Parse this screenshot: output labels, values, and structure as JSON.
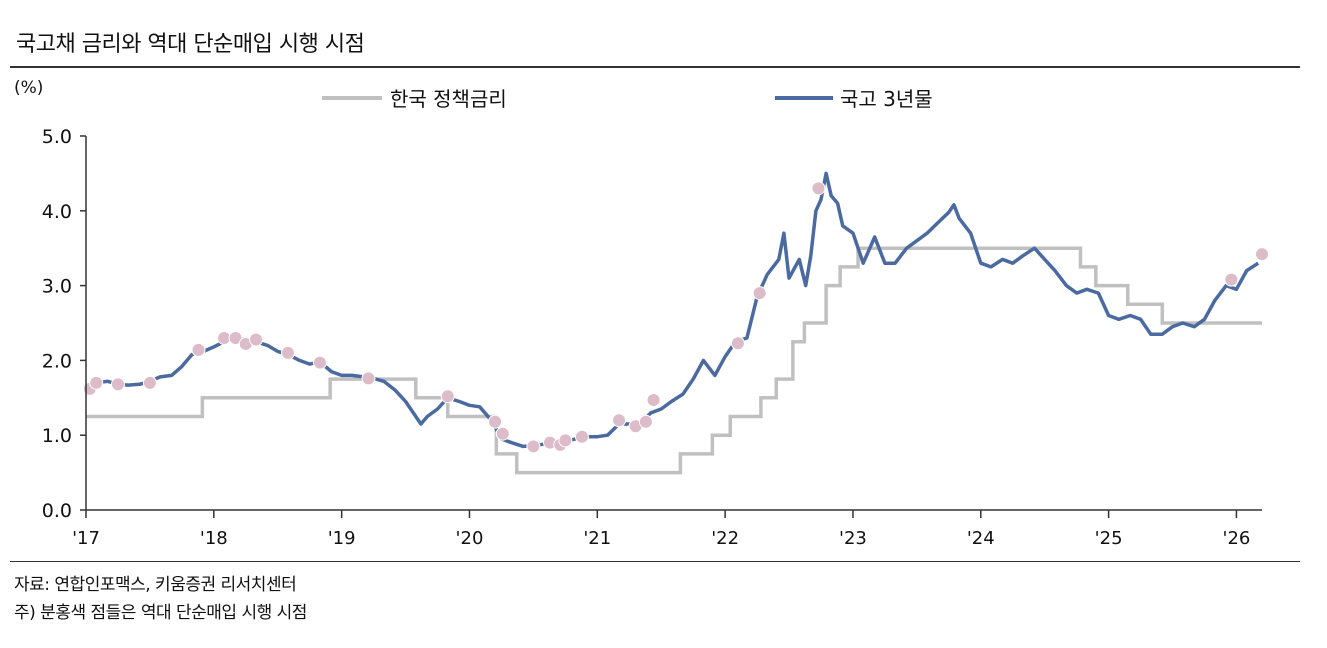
{
  "title": "국고채 금리와 역대 단순매입 시행 시점",
  "notes": {
    "source": "자료: 연합인포맥스, 키움증권 리서치센터",
    "caveat": "주) 분홍색 점들은 역대 단순매입 시행 시점"
  },
  "chart_data": {
    "type": "line",
    "unit_label": "(%)",
    "y_ticks": [
      "0.0",
      "1.0",
      "2.0",
      "3.0",
      "4.0",
      "5.0"
    ],
    "x_ticks": [
      "'17",
      "'18",
      "'19",
      "'20",
      "'21",
      "'22",
      "'23",
      "'24",
      "'25",
      "'26"
    ],
    "ylim": [
      0,
      5
    ],
    "xlim": [
      2017.0,
      2026.2
    ],
    "legend_position": "top",
    "colors": {
      "policy": "#c0c0c0",
      "bond": "#4a6aa0",
      "marker": "#dbbcc8",
      "axis": "#333333"
    },
    "series": [
      {
        "name": "한국 정책금리",
        "step": true,
        "x": [
          2017.0,
          2017.91,
          2018.91,
          2019.58,
          2019.83,
          2020.21,
          2020.37,
          2021.65,
          2021.9,
          2022.04,
          2022.28,
          2022.4,
          2022.53,
          2022.62,
          2022.79,
          2022.9,
          2023.04,
          2024.78,
          2024.9,
          2025.15,
          2025.42,
          2026.2
        ],
        "y": [
          1.25,
          1.5,
          1.75,
          1.5,
          1.25,
          0.75,
          0.5,
          0.75,
          1.0,
          1.25,
          1.5,
          1.75,
          2.25,
          2.5,
          3.0,
          3.25,
          3.5,
          3.25,
          3.0,
          2.75,
          2.5,
          2.5
        ]
      },
      {
        "name": "국고 3년물",
        "x": [
          2017.0,
          2017.08,
          2017.17,
          2017.25,
          2017.33,
          2017.42,
          2017.5,
          2017.58,
          2017.67,
          2017.75,
          2017.83,
          2017.92,
          2018.0,
          2018.08,
          2018.17,
          2018.25,
          2018.33,
          2018.42,
          2018.5,
          2018.58,
          2018.67,
          2018.75,
          2018.83,
          2018.92,
          2019.0,
          2019.08,
          2019.17,
          2019.25,
          2019.33,
          2019.42,
          2019.5,
          2019.58,
          2019.62,
          2019.67,
          2019.75,
          2019.83,
          2019.92,
          2020.0,
          2020.08,
          2020.17,
          2020.21,
          2020.25,
          2020.33,
          2020.42,
          2020.5,
          2020.58,
          2020.67,
          2020.75,
          2020.83,
          2020.92,
          2021.0,
          2021.08,
          2021.17,
          2021.25,
          2021.33,
          2021.42,
          2021.5,
          2021.58,
          2021.67,
          2021.75,
          2021.83,
          2021.92,
          2022.0,
          2022.08,
          2022.17,
          2022.25,
          2022.33,
          2022.42,
          2022.46,
          2022.5,
          2022.58,
          2022.63,
          2022.67,
          2022.71,
          2022.75,
          2022.79,
          2022.83,
          2022.88,
          2022.92,
          2023.0,
          2023.08,
          2023.17,
          2023.25,
          2023.33,
          2023.42,
          2023.5,
          2023.58,
          2023.67,
          2023.75,
          2023.79,
          2023.83,
          2023.92,
          2024.0,
          2024.08,
          2024.17,
          2024.25,
          2024.33,
          2024.42,
          2024.5,
          2024.58,
          2024.67,
          2024.75,
          2024.83,
          2024.92,
          2025.0,
          2025.08,
          2025.17,
          2025.25,
          2025.33,
          2025.42,
          2025.5,
          2025.58,
          2025.67,
          2025.75,
          2025.83,
          2025.92,
          2026.0,
          2026.08,
          2026.17
        ],
        "y": [
          1.62,
          1.7,
          1.72,
          1.68,
          1.67,
          1.68,
          1.72,
          1.78,
          1.8,
          1.92,
          2.08,
          2.12,
          2.18,
          2.25,
          2.3,
          2.28,
          2.25,
          2.2,
          2.12,
          2.08,
          2.0,
          1.95,
          1.98,
          1.85,
          1.8,
          1.8,
          1.78,
          1.76,
          1.72,
          1.6,
          1.45,
          1.25,
          1.15,
          1.25,
          1.35,
          1.5,
          1.45,
          1.4,
          1.38,
          1.2,
          1.08,
          0.95,
          0.9,
          0.85,
          0.86,
          0.88,
          0.9,
          0.92,
          0.95,
          0.98,
          0.98,
          1.0,
          1.15,
          1.15,
          1.15,
          1.3,
          1.35,
          1.45,
          1.55,
          1.75,
          2.0,
          1.8,
          2.05,
          2.25,
          2.3,
          2.85,
          3.15,
          3.35,
          3.7,
          3.1,
          3.35,
          3.0,
          3.4,
          4.0,
          4.15,
          4.5,
          4.2,
          4.1,
          3.8,
          3.7,
          3.3,
          3.65,
          3.3,
          3.3,
          3.5,
          3.6,
          3.7,
          3.85,
          3.98,
          4.08,
          3.9,
          3.7,
          3.3,
          3.25,
          3.35,
          3.3,
          3.4,
          3.5,
          3.35,
          3.2,
          3.0,
          2.9,
          2.95,
          2.9,
          2.6,
          2.55,
          2.6,
          2.55,
          2.35,
          2.35,
          2.45,
          2.5,
          2.45,
          2.55,
          2.8,
          3.0,
          2.95,
          3.2,
          3.3
        ]
      }
    ],
    "purchase_points": {
      "x": [
        2017.03,
        2017.08,
        2017.25,
        2017.5,
        2017.88,
        2018.08,
        2018.17,
        2018.25,
        2018.33,
        2018.58,
        2018.83,
        2019.21,
        2019.83,
        2020.2,
        2020.26,
        2020.5,
        2020.63,
        2020.71,
        2020.75,
        2020.88,
        2021.17,
        2021.3,
        2021.38,
        2021.44,
        2022.1,
        2022.27,
        2022.73,
        2025.96,
        2026.2
      ],
      "y": [
        1.62,
        1.7,
        1.68,
        1.7,
        2.14,
        2.3,
        2.3,
        2.22,
        2.28,
        2.1,
        1.97,
        1.76,
        1.52,
        1.18,
        1.02,
        0.85,
        0.9,
        0.87,
        0.93,
        0.98,
        1.2,
        1.12,
        1.18,
        1.47,
        2.23,
        2.9,
        4.3,
        3.08,
        3.42
      ]
    }
  }
}
